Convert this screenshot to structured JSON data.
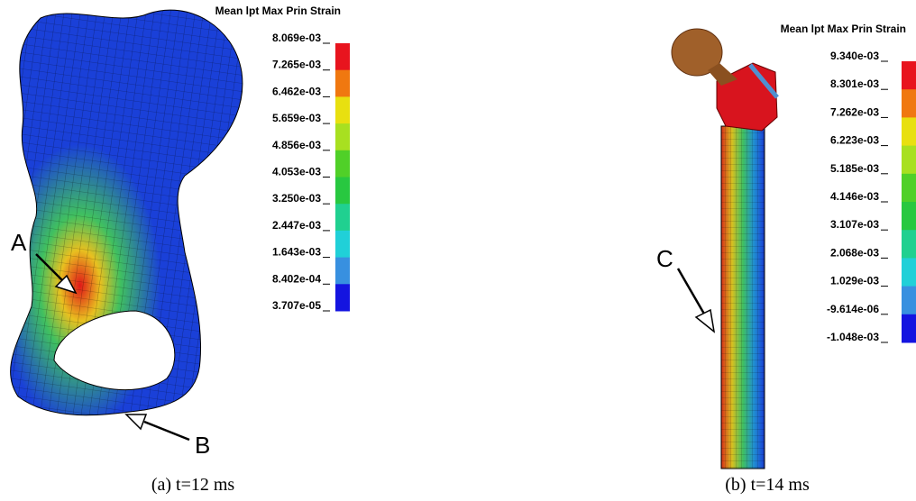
{
  "panels": [
    {
      "legend_title": "Mean  lpt Max Prin Strain",
      "legend_labels": [
        "8.069e-03",
        "7.265e-03",
        "6.462e-03",
        "5.659e-03",
        "4.856e-03",
        "4.053e-03",
        "3.250e-03",
        "2.447e-03",
        "1.643e-03",
        "8.402e-04",
        "3.707e-05"
      ],
      "legend_colors": [
        "#e8141e",
        "#f07810",
        "#e8e010",
        "#a8e020",
        "#50d028",
        "#28c840",
        "#20d090",
        "#20d0d8",
        "#3890e0",
        "#1414e0"
      ],
      "markers": [
        "A",
        "B"
      ],
      "caption": "(a) t=12 ms"
    },
    {
      "legend_title": "Mean  lpt Max Prin Strain",
      "legend_labels": [
        "9.340e-03",
        "8.301e-03",
        "7.262e-03",
        "6.223e-03",
        "5.185e-03",
        "4.146e-03",
        "3.107e-03",
        "2.068e-03",
        "1.029e-03",
        "-9.614e-06",
        "-1.048e-03"
      ],
      "legend_colors": [
        "#e8141e",
        "#f07810",
        "#e8e010",
        "#a8e020",
        "#50d028",
        "#28c840",
        "#20d090",
        "#20d0d8",
        "#3890e0",
        "#1414e0"
      ],
      "markers": [
        "C"
      ],
      "caption": "(b) t=14 ms"
    }
  ]
}
